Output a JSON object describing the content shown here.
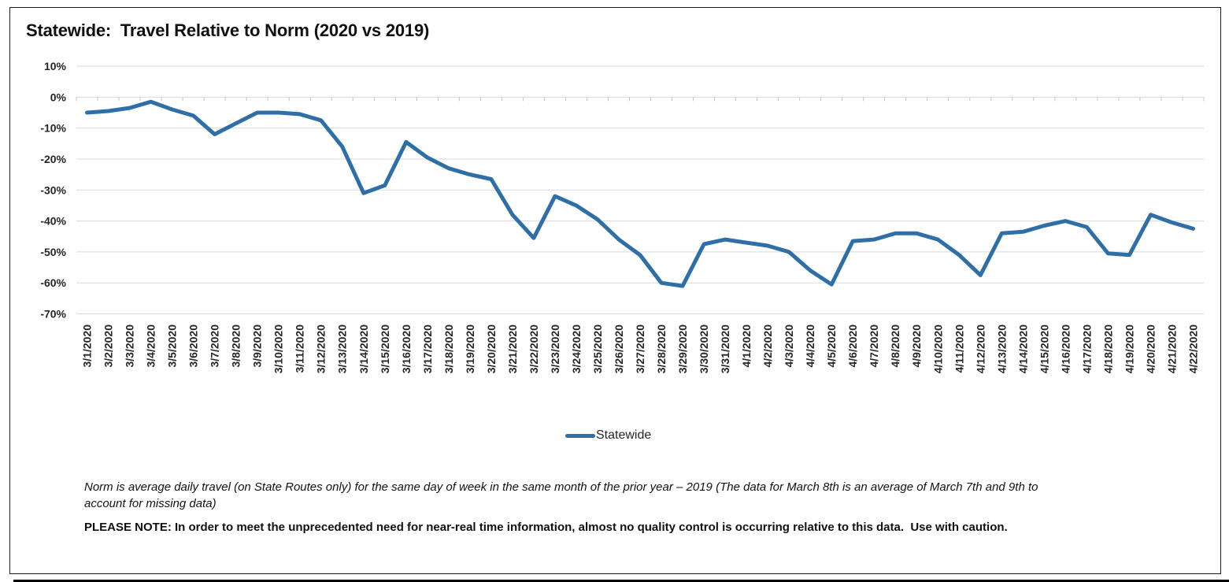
{
  "title": "Statewide:  Travel Relative to Norm (2020 vs 2019)",
  "legend": {
    "label": "Statewide"
  },
  "footnotes": {
    "norm_note": "Norm is average daily travel (on State Routes only) for the same day of week in the same month of the prior year – 2019 (The data for March 8th is an average of March 7th and 9th to account for missing data)",
    "quality_note": "PLEASE NOTE: In order to meet the unprecedented need for near-real time information, almost no quality control is occurring relative to this data.  Use with caution."
  },
  "colors": {
    "line": "#2e6fa8",
    "gridline": "#d9d9d9",
    "tick": "#c3c3c3",
    "axis_text": "#262626",
    "frame_border": "#1c1c1c"
  },
  "chart_data": {
    "type": "line",
    "title": "Statewide:  Travel Relative to Norm (2020 vs 2019)",
    "xlabel": "",
    "ylabel": "",
    "ylim": [
      -70,
      10
    ],
    "y_ticks": [
      10,
      0,
      -10,
      -20,
      -30,
      -40,
      -50,
      -60,
      -70
    ],
    "y_tick_format": "percent",
    "grid": "horizontal",
    "legend_position": "bottom",
    "categories": [
      "3/1/2020",
      "3/2/2020",
      "3/3/2020",
      "3/4/2020",
      "3/5/2020",
      "3/6/2020",
      "3/7/2020",
      "3/8/2020",
      "3/9/2020",
      "3/10/2020",
      "3/11/2020",
      "3/12/2020",
      "3/13/2020",
      "3/14/2020",
      "3/15/2020",
      "3/16/2020",
      "3/17/2020",
      "3/18/2020",
      "3/19/2020",
      "3/20/2020",
      "3/21/2020",
      "3/22/2020",
      "3/23/2020",
      "3/24/2020",
      "3/25/2020",
      "3/26/2020",
      "3/27/2020",
      "3/28/2020",
      "3/29/2020",
      "3/30/2020",
      "3/31/2020",
      "4/1/2020",
      "4/2/2020",
      "4/3/2020",
      "4/4/2020",
      "4/5/2020",
      "4/6/2020",
      "4/7/2020",
      "4/8/2020",
      "4/9/2020",
      "4/10/2020",
      "4/11/2020",
      "4/12/2020",
      "4/13/2020",
      "4/14/2020",
      "4/15/2020",
      "4/16/2020",
      "4/17/2020",
      "4/18/2020",
      "4/19/2020",
      "4/20/2020",
      "4/21/2020",
      "4/22/2020"
    ],
    "series": [
      {
        "name": "Statewide",
        "values": [
          -5,
          -4.5,
          -3.5,
          -1.5,
          -4,
          -6,
          -12,
          -8.5,
          -5,
          -5,
          -5.5,
          -7.5,
          -16,
          -31,
          -28.5,
          -14.5,
          -19.5,
          -23,
          -25,
          -26.5,
          -38,
          -45.5,
          -32,
          -35,
          -39.5,
          -46,
          -51,
          -60,
          -61,
          -47.5,
          -46,
          -47,
          -48,
          -50,
          -56,
          -60.5,
          -46.5,
          -46,
          -44,
          -44,
          -46,
          -51,
          -57.5,
          -44,
          -43.5,
          -41.5,
          -40,
          -42,
          -50.5,
          -51,
          -38,
          -40.5,
          -42.5
        ]
      }
    ]
  }
}
